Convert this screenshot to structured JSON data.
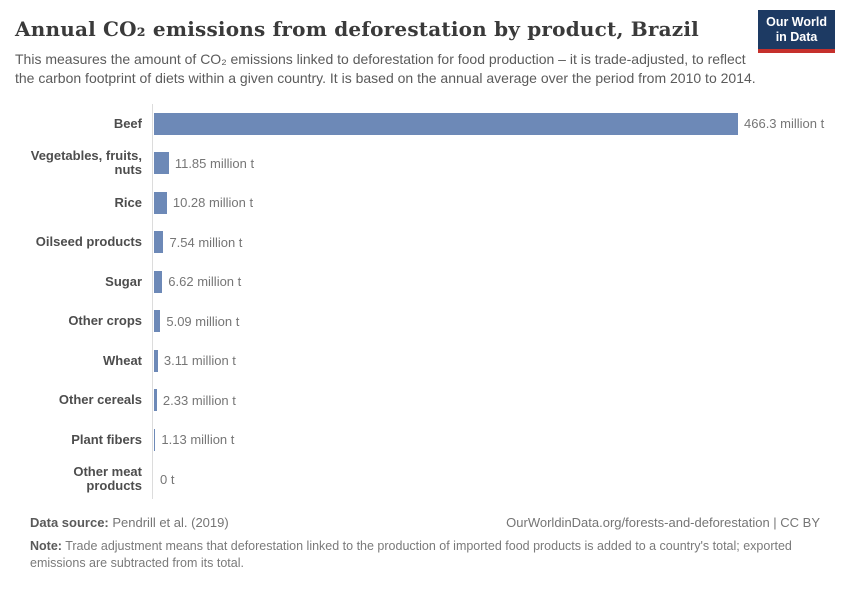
{
  "colors": {
    "bar": "#6d89b7",
    "axis_line": "#dcdcdc",
    "logo_navy": "#1d3a63",
    "logo_red": "#c5302c"
  },
  "header": {
    "title": "Annual CO₂ emissions from deforestation by product, Brazil",
    "subtitle": "This measures the amount of CO₂ emissions linked to deforestation for food production – it is trade-adjusted, to reflect the carbon footprint of diets within a given country. It is based on the annual average over the period from 2010 to 2014.",
    "logo_line1": "Our World",
    "logo_line2": "in Data"
  },
  "chart_data": {
    "type": "bar",
    "orientation": "horizontal",
    "title": "Annual CO₂ emissions from deforestation by product, Brazil",
    "categories": [
      "Beef",
      "Vegetables, fruits, nuts",
      "Rice",
      "Oilseed products",
      "Sugar",
      "Other crops",
      "Wheat",
      "Other cereals",
      "Plant fibers",
      "Other meat products"
    ],
    "values": [
      466.3,
      11.85,
      10.28,
      7.54,
      6.62,
      5.09,
      3.11,
      2.33,
      1.13,
      0
    ],
    "value_labels": [
      "466.3 million t",
      "11.85 million t",
      "10.28 million t",
      "7.54 million t",
      "6.62 million t",
      "5.09 million t",
      "3.11 million t",
      "2.33 million t",
      "1.13 million t",
      "0 t"
    ],
    "unit": "million t",
    "xlim": [
      0,
      466.3
    ],
    "grid": false,
    "legend": false,
    "bar_color": "#6d89b7"
  },
  "footer": {
    "source_label": "Data source:",
    "source_text": " Pendrill et al. (2019)",
    "link_text": "OurWorldinData.org/forests-and-deforestation | CC BY",
    "note_label": "Note:",
    "note_text": " Trade adjustment means that deforestation linked to the production of imported food products is added to a country's total; exported emissions are subtracted from its total."
  }
}
